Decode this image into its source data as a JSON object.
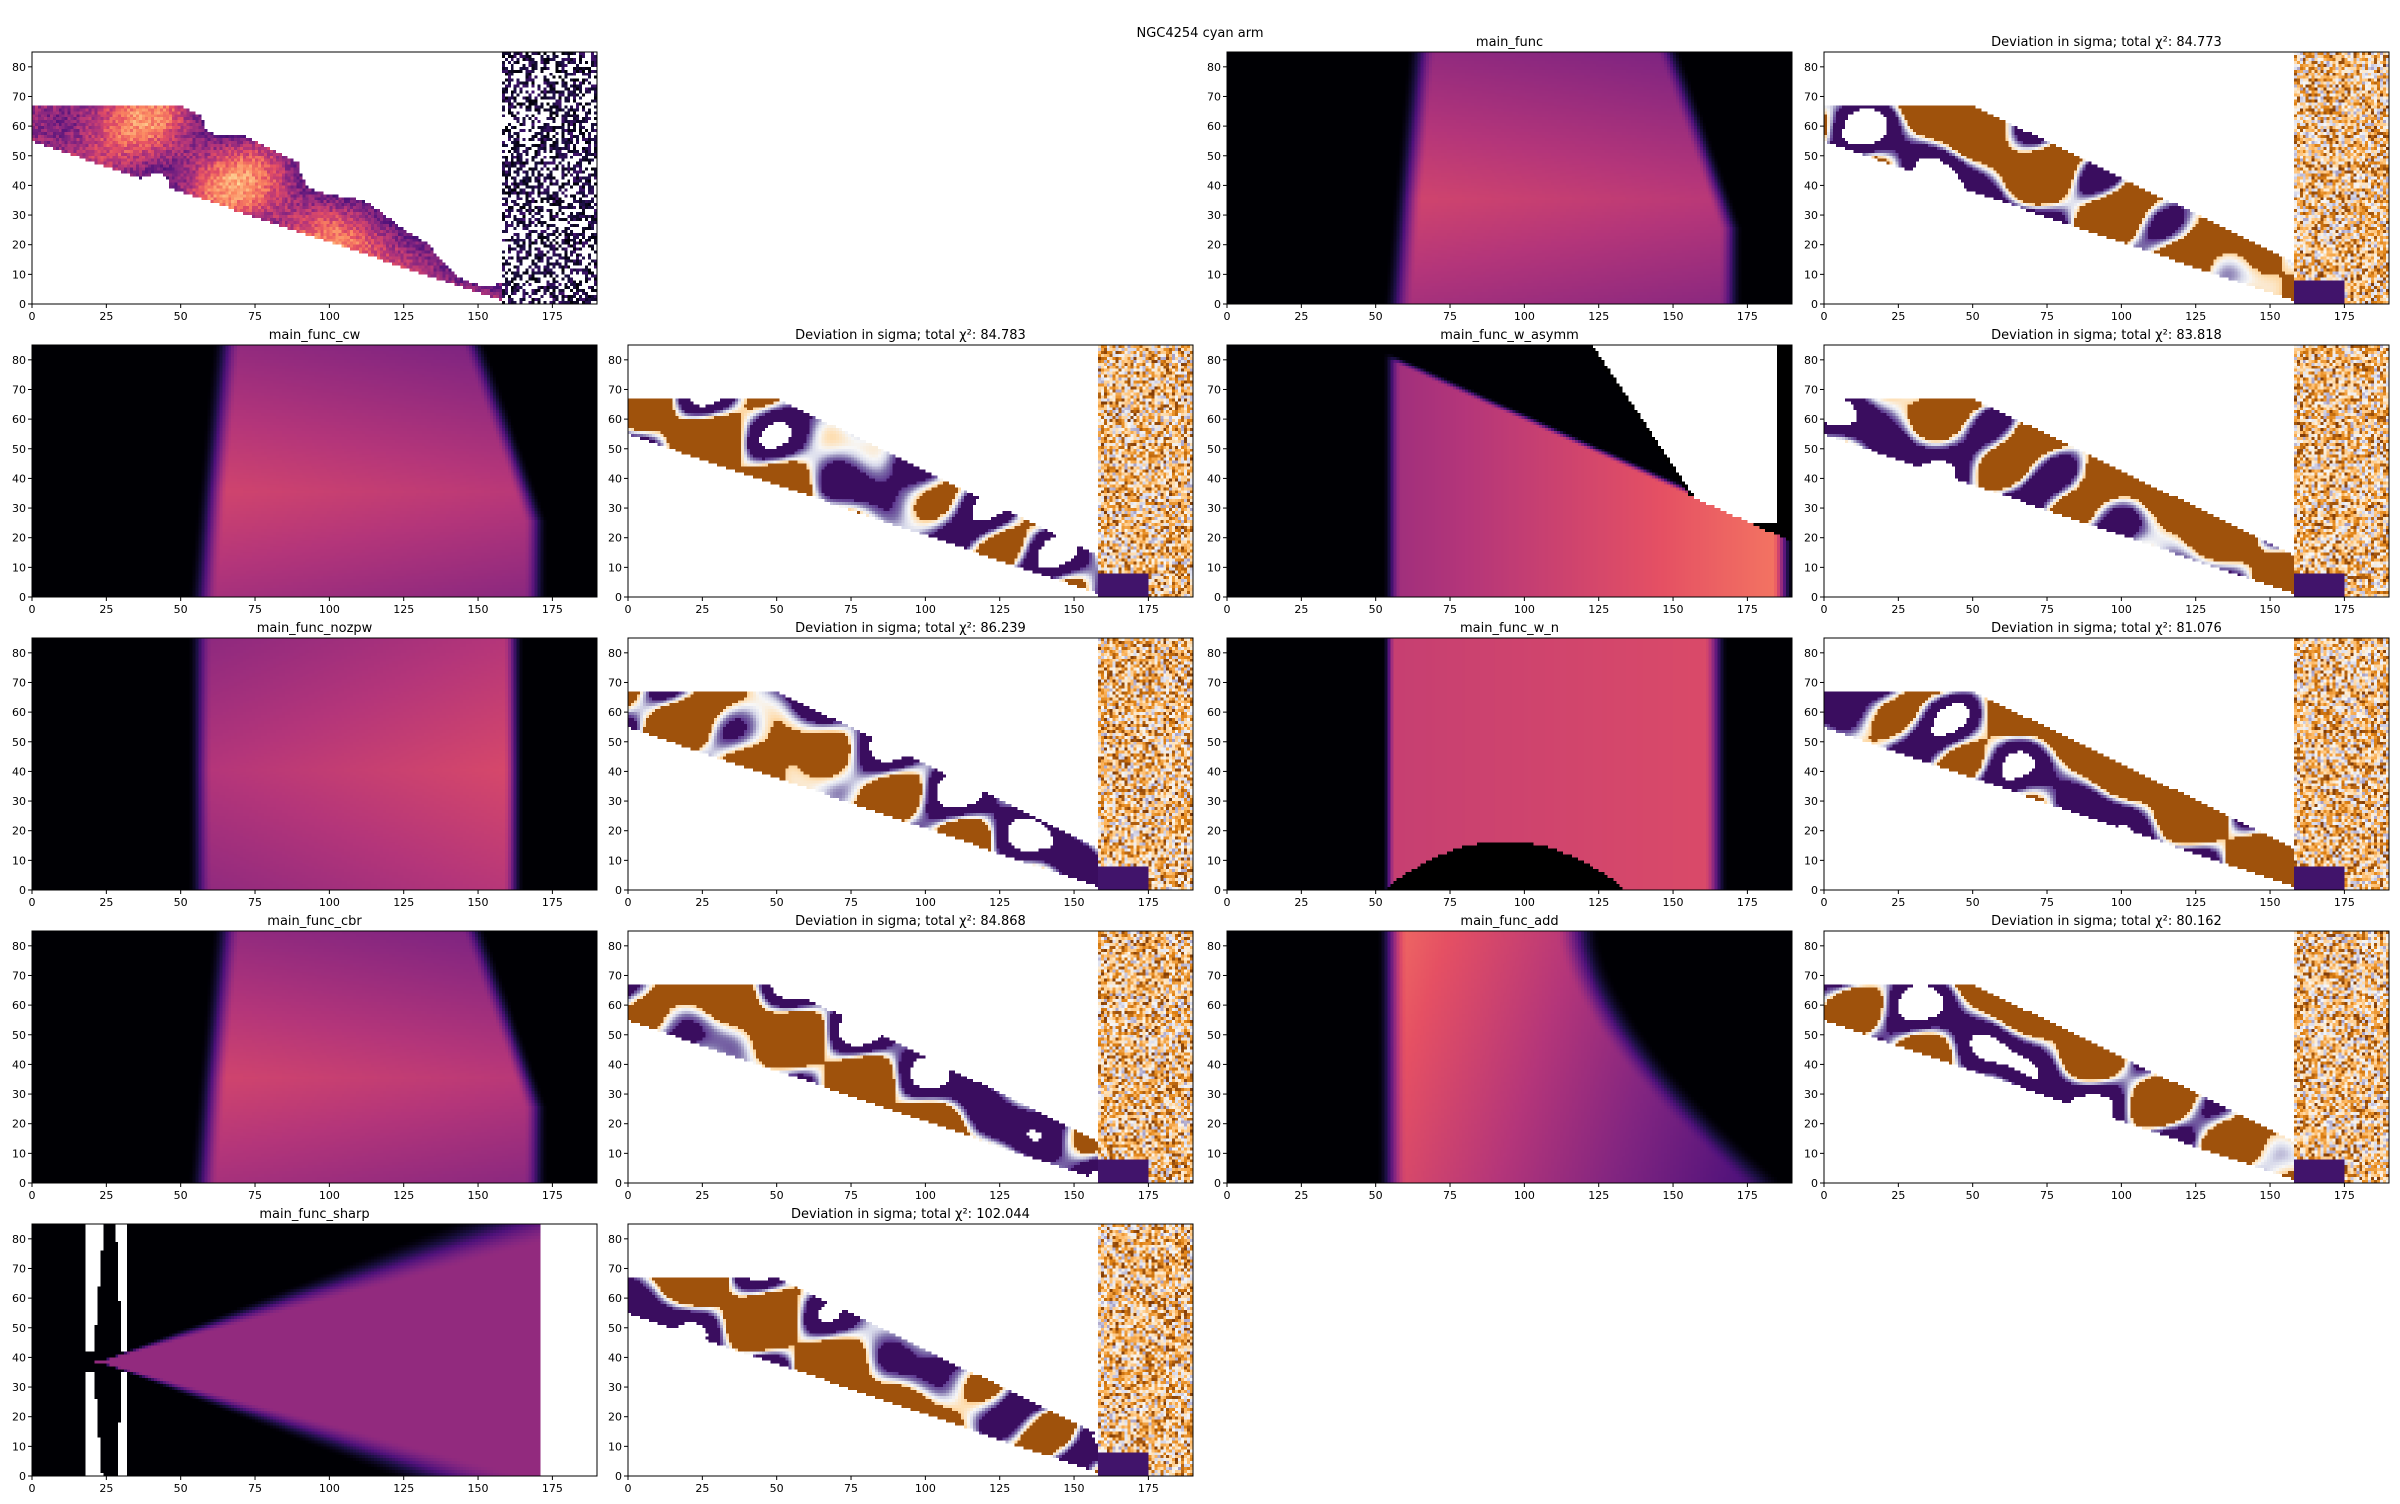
{
  "figure": {
    "suptitle": "NGC4254 cyan arm"
  },
  "chart_data": [
    {
      "type": "heatmap",
      "panel": "data",
      "title": "",
      "colormap": "magma",
      "xlim": [
        0,
        190
      ],
      "ylim": [
        0,
        85
      ],
      "xticks": [
        0,
        25,
        50,
        75,
        100,
        125,
        150,
        175
      ],
      "yticks": [
        0,
        10,
        20,
        30,
        40,
        50,
        60,
        70,
        80
      ]
    },
    {
      "type": "heatmap",
      "panel": "model",
      "title": "main_func",
      "model": "main_func",
      "colormap": "magma",
      "xlim": [
        0,
        190
      ],
      "ylim": [
        0,
        85
      ],
      "xticks": [
        0,
        25,
        50,
        75,
        100,
        125,
        150,
        175
      ],
      "yticks": [
        0,
        10,
        20,
        30,
        40,
        50,
        60,
        70,
        80
      ]
    },
    {
      "type": "heatmap",
      "panel": "residual",
      "title": "Deviation in sigma; total χ²: 84.773",
      "chi2": 84.773,
      "colormap": "PuOr",
      "xlim": [
        0,
        190
      ],
      "ylim": [
        0,
        85
      ],
      "xticks": [
        0,
        25,
        50,
        75,
        100,
        125,
        150,
        175
      ],
      "yticks": [
        0,
        10,
        20,
        30,
        40,
        50,
        60,
        70,
        80
      ]
    },
    {
      "type": "heatmap",
      "panel": "model",
      "title": "main_func_cw",
      "model": "main_func_cw",
      "colormap": "magma",
      "xlim": [
        0,
        190
      ],
      "ylim": [
        0,
        85
      ],
      "xticks": [
        0,
        25,
        50,
        75,
        100,
        125,
        150,
        175
      ],
      "yticks": [
        0,
        10,
        20,
        30,
        40,
        50,
        60,
        70,
        80
      ]
    },
    {
      "type": "heatmap",
      "panel": "residual",
      "title": "Deviation in sigma; total χ²: 84.783",
      "chi2": 84.783,
      "colormap": "PuOr",
      "xlim": [
        0,
        190
      ],
      "ylim": [
        0,
        85
      ],
      "xticks": [
        0,
        25,
        50,
        75,
        100,
        125,
        150,
        175
      ],
      "yticks": [
        0,
        10,
        20,
        30,
        40,
        50,
        60,
        70,
        80
      ]
    },
    {
      "type": "heatmap",
      "panel": "model",
      "title": "main_func_w_asymm",
      "model": "main_func_w_asymm",
      "colormap": "magma",
      "xlim": [
        0,
        190
      ],
      "ylim": [
        0,
        85
      ],
      "xticks": [
        0,
        25,
        50,
        75,
        100,
        125,
        150,
        175
      ],
      "yticks": [
        0,
        10,
        20,
        30,
        40,
        50,
        60,
        70,
        80
      ]
    },
    {
      "type": "heatmap",
      "panel": "residual",
      "title": "Deviation in sigma; total χ²: 83.818",
      "chi2": 83.818,
      "colormap": "PuOr",
      "xlim": [
        0,
        190
      ],
      "ylim": [
        0,
        85
      ],
      "xticks": [
        0,
        25,
        50,
        75,
        100,
        125,
        150,
        175
      ],
      "yticks": [
        0,
        10,
        20,
        30,
        40,
        50,
        60,
        70,
        80
      ]
    },
    {
      "type": "heatmap",
      "panel": "model",
      "title": "main_func_nozpw",
      "model": "main_func_nozpw",
      "colormap": "magma",
      "xlim": [
        0,
        190
      ],
      "ylim": [
        0,
        85
      ],
      "xticks": [
        0,
        25,
        50,
        75,
        100,
        125,
        150,
        175
      ],
      "yticks": [
        0,
        10,
        20,
        30,
        40,
        50,
        60,
        70,
        80
      ]
    },
    {
      "type": "heatmap",
      "panel": "residual",
      "title": "Deviation in sigma; total χ²: 86.239",
      "chi2": 86.239,
      "colormap": "PuOr",
      "xlim": [
        0,
        190
      ],
      "ylim": [
        0,
        85
      ],
      "xticks": [
        0,
        25,
        50,
        75,
        100,
        125,
        150,
        175
      ],
      "yticks": [
        0,
        10,
        20,
        30,
        40,
        50,
        60,
        70,
        80
      ]
    },
    {
      "type": "heatmap",
      "panel": "model",
      "title": "main_func_w_n",
      "model": "main_func_w_n",
      "colormap": "magma",
      "xlim": [
        0,
        190
      ],
      "ylim": [
        0,
        85
      ],
      "xticks": [
        0,
        25,
        50,
        75,
        100,
        125,
        150,
        175
      ],
      "yticks": [
        0,
        10,
        20,
        30,
        40,
        50,
        60,
        70,
        80
      ]
    },
    {
      "type": "heatmap",
      "panel": "residual",
      "title": "Deviation in sigma; total χ²: 81.076",
      "chi2": 81.076,
      "colormap": "PuOr",
      "xlim": [
        0,
        190
      ],
      "ylim": [
        0,
        85
      ],
      "xticks": [
        0,
        25,
        50,
        75,
        100,
        125,
        150,
        175
      ],
      "yticks": [
        0,
        10,
        20,
        30,
        40,
        50,
        60,
        70,
        80
      ]
    },
    {
      "type": "heatmap",
      "panel": "model",
      "title": "main_func_cbr",
      "model": "main_func_cbr",
      "colormap": "magma",
      "xlim": [
        0,
        190
      ],
      "ylim": [
        0,
        85
      ],
      "xticks": [
        0,
        25,
        50,
        75,
        100,
        125,
        150,
        175
      ],
      "yticks": [
        0,
        10,
        20,
        30,
        40,
        50,
        60,
        70,
        80
      ]
    },
    {
      "type": "heatmap",
      "panel": "residual",
      "title": "Deviation in sigma; total χ²: 84.868",
      "chi2": 84.868,
      "colormap": "PuOr",
      "xlim": [
        0,
        190
      ],
      "ylim": [
        0,
        85
      ],
      "xticks": [
        0,
        25,
        50,
        75,
        100,
        125,
        150,
        175
      ],
      "yticks": [
        0,
        10,
        20,
        30,
        40,
        50,
        60,
        70,
        80
      ]
    },
    {
      "type": "heatmap",
      "panel": "model",
      "title": "main_func_add",
      "model": "main_func_add",
      "colormap": "magma",
      "xlim": [
        0,
        190
      ],
      "ylim": [
        0,
        85
      ],
      "xticks": [
        0,
        25,
        50,
        75,
        100,
        125,
        150,
        175
      ],
      "yticks": [
        0,
        10,
        20,
        30,
        40,
        50,
        60,
        70,
        80
      ]
    },
    {
      "type": "heatmap",
      "panel": "residual",
      "title": "Deviation in sigma; total χ²: 80.162",
      "chi2": 80.162,
      "colormap": "PuOr",
      "xlim": [
        0,
        190
      ],
      "ylim": [
        0,
        85
      ],
      "xticks": [
        0,
        25,
        50,
        75,
        100,
        125,
        150,
        175
      ],
      "yticks": [
        0,
        10,
        20,
        30,
        40,
        50,
        60,
        70,
        80
      ]
    },
    {
      "type": "heatmap",
      "panel": "model",
      "title": "main_func_sharp",
      "model": "main_func_sharp",
      "colormap": "magma",
      "xlim": [
        0,
        190
      ],
      "ylim": [
        0,
        85
      ],
      "xticks": [
        0,
        25,
        50,
        75,
        100,
        125,
        150,
        175
      ],
      "yticks": [
        0,
        10,
        20,
        30,
        40,
        50,
        60,
        70,
        80
      ]
    },
    {
      "type": "heatmap",
      "panel": "residual",
      "title": "Deviation in sigma; total χ²: 102.044",
      "chi2": 102.044,
      "colormap": "PuOr",
      "xlim": [
        0,
        190
      ],
      "ylim": [
        0,
        85
      ],
      "xticks": [
        0,
        25,
        50,
        75,
        100,
        125,
        150,
        175
      ],
      "yticks": [
        0,
        10,
        20,
        30,
        40,
        50,
        60,
        70,
        80
      ]
    }
  ]
}
